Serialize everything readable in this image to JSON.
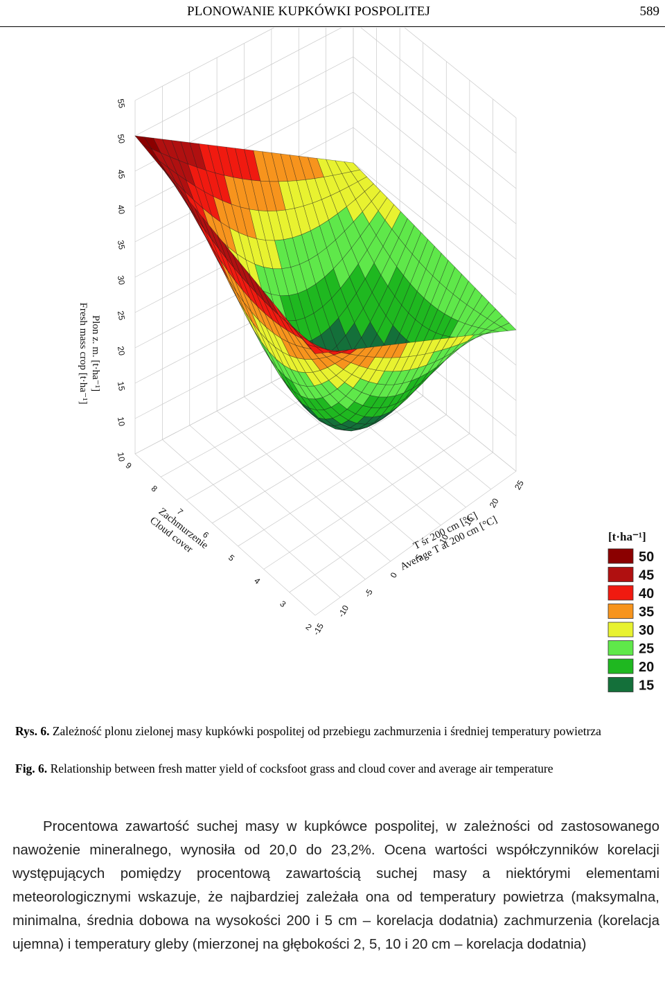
{
  "header": {
    "running_title": "PLONOWANIE KUPKÓWKI POSPOLITEJ",
    "page_number": "589"
  },
  "chart_data": {
    "type": "surface3d",
    "z_axis": {
      "label_pl": "Plon z. m. [t·ha⁻¹]",
      "label_en": "Fresh mass crop [t·ha⁻¹]",
      "ticks": [
        "10",
        "10",
        "15",
        "20",
        "25",
        "30",
        "35",
        "40",
        "45",
        "50",
        "55"
      ],
      "range": [
        5,
        55
      ]
    },
    "x_axis": {
      "label_pl": "Zachmurzenie",
      "label_en": "Cloud cover",
      "ticks": [
        "2",
        "3",
        "4",
        "5",
        "6",
        "7",
        "8",
        "9"
      ],
      "range": [
        2,
        9
      ]
    },
    "y_axis": {
      "label_pl": "T śr 200 cm [°C]",
      "label_en": "Average T at 200 cm [°C]",
      "ticks": [
        "-15",
        "-10",
        "-5",
        "0",
        "5",
        "10",
        "15",
        "20",
        "25"
      ],
      "range": [
        -15,
        25
      ]
    },
    "surface_samples": [
      {
        "cloud": 9,
        "temp": -15,
        "yield": 50
      },
      {
        "cloud": 2,
        "temp": -15,
        "yield": 42
      },
      {
        "cloud": 9,
        "temp": 25,
        "yield": 30
      },
      {
        "cloud": 2,
        "temp": 25,
        "yield": 25
      },
      {
        "cloud": 5,
        "temp": 5,
        "yield": 15
      }
    ],
    "legend": {
      "title": "[t·ha⁻¹]",
      "entries": [
        {
          "label": "50",
          "color": "#8b0000"
        },
        {
          "label": "45",
          "color": "#b01010"
        },
        {
          "label": "40",
          "color": "#f01a10"
        },
        {
          "label": "35",
          "color": "#f7941d"
        },
        {
          "label": "30",
          "color": "#e8f230"
        },
        {
          "label": "25",
          "color": "#5fe84a"
        },
        {
          "label": "20",
          "color": "#1fb820"
        },
        {
          "label": "15",
          "color": "#14703a"
        }
      ]
    }
  },
  "caption": {
    "pl_label": "Rys. 6.",
    "pl_text": "Zależność plonu zielonej masy kupkówki pospolitej od przebiegu zachmurzenia i średniej temperatury powietrza",
    "en_label": "Fig. 6.",
    "en_text": "Relationship between fresh matter yield of cocksfoot grass and cloud cover and average air temperature"
  },
  "body": {
    "paragraph": "Procentowa zawartość suchej masy w kupkówce pospolitej, w zależności od zastosowanego nawożenie mineralnego, wynosiła od 20,0 do 23,2%. Ocena wartości współczynników korelacji występujących pomiędzy procentową zawartością suchej masy a niektórymi elementami meteorologicznymi wskazuje, że najbardziej zależała ona od temperatury powietrza (maksymalna, minimalna, średnia dobowa na wysokości 200 i 5 cm – korelacja dodatnia) zachmurzenia (korelacja ujemna) i temperatury gleby (mierzonej na głębokości 2, 5, 10 i 20 cm – korelacja dodatnia)"
  }
}
